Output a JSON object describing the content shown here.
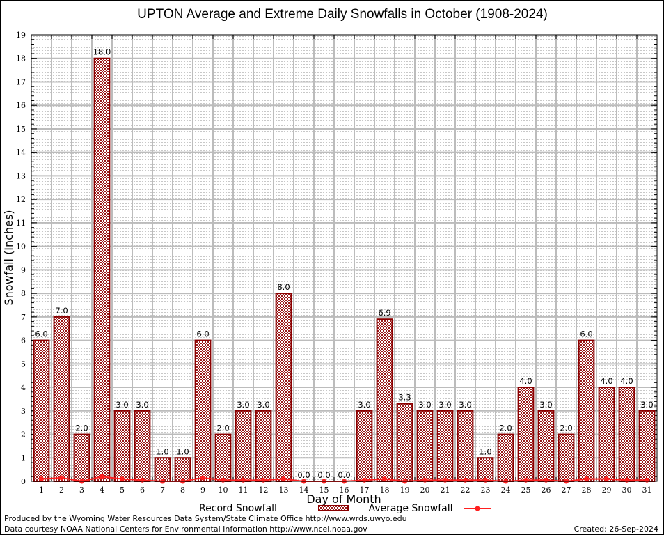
{
  "chart_data": {
    "type": "bar",
    "title": "UPTON Average and Extreme Daily Snowfalls in October (1908-2024)",
    "xlabel": "Day of Month",
    "ylabel": "Snowfall (Inches)",
    "ylim": [
      0,
      19
    ],
    "yticks": [
      "0",
      "1",
      "2",
      "3",
      "4",
      "5",
      "6",
      "7",
      "8",
      "9",
      "10",
      "11",
      "12",
      "13",
      "14",
      "15",
      "16",
      "17",
      "18",
      "19"
    ],
    "grid": true,
    "categories": [
      "1",
      "2",
      "3",
      "4",
      "5",
      "6",
      "7",
      "8",
      "9",
      "10",
      "11",
      "12",
      "13",
      "14",
      "15",
      "16",
      "17",
      "18",
      "19",
      "20",
      "21",
      "22",
      "23",
      "24",
      "25",
      "26",
      "27",
      "28",
      "29",
      "30",
      "31"
    ],
    "series": [
      {
        "name": "Record Snowfall",
        "kind": "bar",
        "color": "#8b0000",
        "values": [
          6.0,
          7.0,
          2.0,
          18.0,
          3.0,
          3.0,
          1.0,
          1.0,
          6.0,
          2.0,
          3.0,
          3.0,
          8.0,
          0.0,
          0.0,
          0.0,
          3.0,
          6.9,
          3.3,
          3.0,
          3.0,
          3.0,
          1.0,
          2.0,
          4.0,
          3.0,
          2.0,
          6.0,
          4.0,
          4.0,
          3.0
        ],
        "labels": [
          "6.0",
          "7.0",
          "2.0",
          "18.0",
          "3.0",
          "3.0",
          "1.0",
          "1.0",
          "6.0",
          "2.0",
          "3.0",
          "3.0",
          "8.0",
          "0.0",
          "0.0",
          "0.0",
          "3.0",
          "6.9",
          "3.3",
          "3.0",
          "3.0",
          "3.0",
          "1.0",
          "2.0",
          "4.0",
          "3.0",
          "2.0",
          "6.0",
          "4.0",
          "4.0",
          "3.0"
        ]
      },
      {
        "name": "Average Snowfall",
        "kind": "line",
        "color": "#ff2020",
        "values": [
          0.1,
          0.15,
          0.0,
          0.2,
          0.1,
          0.05,
          0.0,
          0.0,
          0.15,
          0.05,
          0.05,
          0.05,
          0.1,
          0.0,
          0.0,
          0.0,
          0.05,
          0.1,
          0.0,
          0.05,
          0.05,
          0.05,
          0.05,
          0.0,
          0.05,
          0.05,
          0.0,
          0.1,
          0.1,
          0.05,
          0.05
        ]
      }
    ],
    "legend": {
      "position": "bottom",
      "record_label": "Record Snowfall",
      "average_label": "Average Snowfall"
    }
  },
  "footer": {
    "produced_by": "Produced by the Wyoming Water Resources Data System/State Climate Office http://www.wrds.uwyo.edu",
    "data_courtesy": "Data courtesy NOAA National Centers for Environmental Information http://www.ncei.noaa.gov",
    "created": "Created: 26-Sep-2024"
  }
}
